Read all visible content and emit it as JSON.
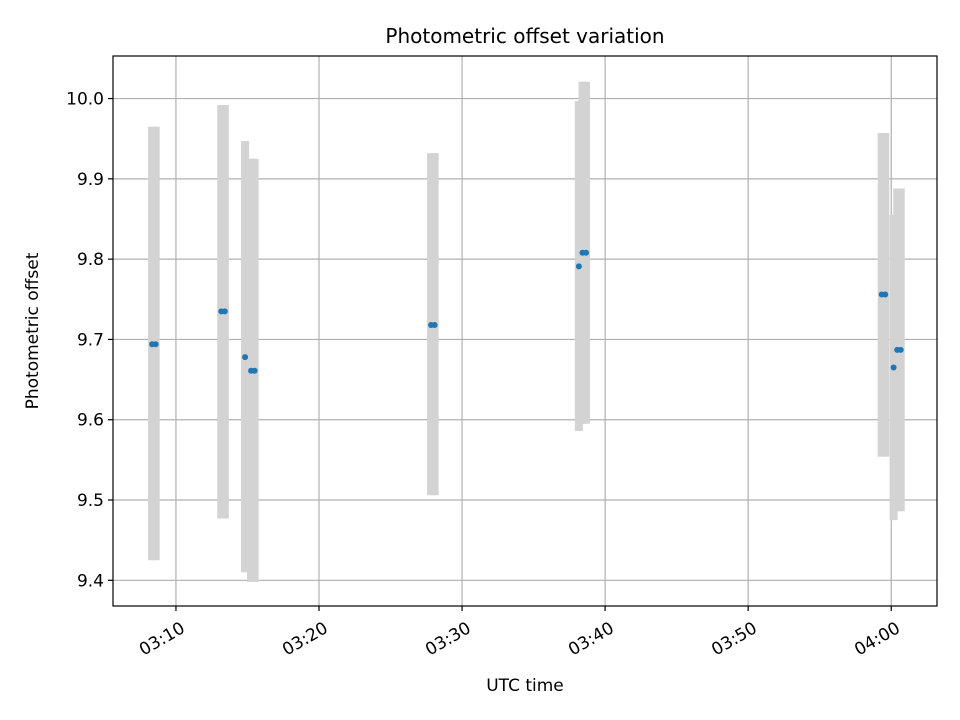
{
  "chart_data": {
    "type": "scatter",
    "title": "Photometric offset variation",
    "xlabel": "UTC time",
    "ylabel": "Photometric offset",
    "grid": true,
    "colors": {
      "point": "#1f77b4",
      "errorbar": "#d3d3d3",
      "grid": "#b0b0b0"
    },
    "xlim": [
      "03:05:36",
      "04:03:12"
    ],
    "ylim": [
      9.368,
      10.053
    ],
    "xticks": [
      "03:10",
      "03:20",
      "03:30",
      "03:40",
      "03:50",
      "04:00"
    ],
    "yticks": [
      "9.4",
      "9.5",
      "9.6",
      "9.7",
      "9.8",
      "9.9",
      "10.0"
    ],
    "points": [
      {
        "x": "03:08:20",
        "y": 9.694,
        "err_low": 9.425,
        "err_high": 9.965
      },
      {
        "x": "03:08:35",
        "y": 9.694,
        "err_low": 9.425,
        "err_high": 9.965
      },
      {
        "x": "03:13:10",
        "y": 9.735,
        "err_low": 9.477,
        "err_high": 9.992
      },
      {
        "x": "03:13:25",
        "y": 9.735,
        "err_low": 9.477,
        "err_high": 9.992
      },
      {
        "x": "03:14:50",
        "y": 9.678,
        "err_low": 9.41,
        "err_high": 9.947
      },
      {
        "x": "03:15:15",
        "y": 9.661,
        "err_low": 9.398,
        "err_high": 9.925
      },
      {
        "x": "03:15:30",
        "y": 9.661,
        "err_low": 9.398,
        "err_high": 9.925
      },
      {
        "x": "03:27:50",
        "y": 9.718,
        "err_low": 9.506,
        "err_high": 9.932
      },
      {
        "x": "03:28:05",
        "y": 9.718,
        "err_low": 9.506,
        "err_high": 9.932
      },
      {
        "x": "03:38:10",
        "y": 9.791,
        "err_low": 9.586,
        "err_high": 9.997
      },
      {
        "x": "03:38:25",
        "y": 9.808,
        "err_low": 9.595,
        "err_high": 10.021
      },
      {
        "x": "03:38:40",
        "y": 9.808,
        "err_low": 9.595,
        "err_high": 10.021
      },
      {
        "x": "03:59:20",
        "y": 9.756,
        "err_low": 9.554,
        "err_high": 9.957
      },
      {
        "x": "03:59:35",
        "y": 9.756,
        "err_low": 9.554,
        "err_high": 9.957
      },
      {
        "x": "04:00:10",
        "y": 9.665,
        "err_low": 9.475,
        "err_high": 9.855
      },
      {
        "x": "04:00:25",
        "y": 9.687,
        "err_low": 9.486,
        "err_high": 9.888
      },
      {
        "x": "04:00:40",
        "y": 9.687,
        "err_low": 9.486,
        "err_high": 9.888
      }
    ]
  }
}
